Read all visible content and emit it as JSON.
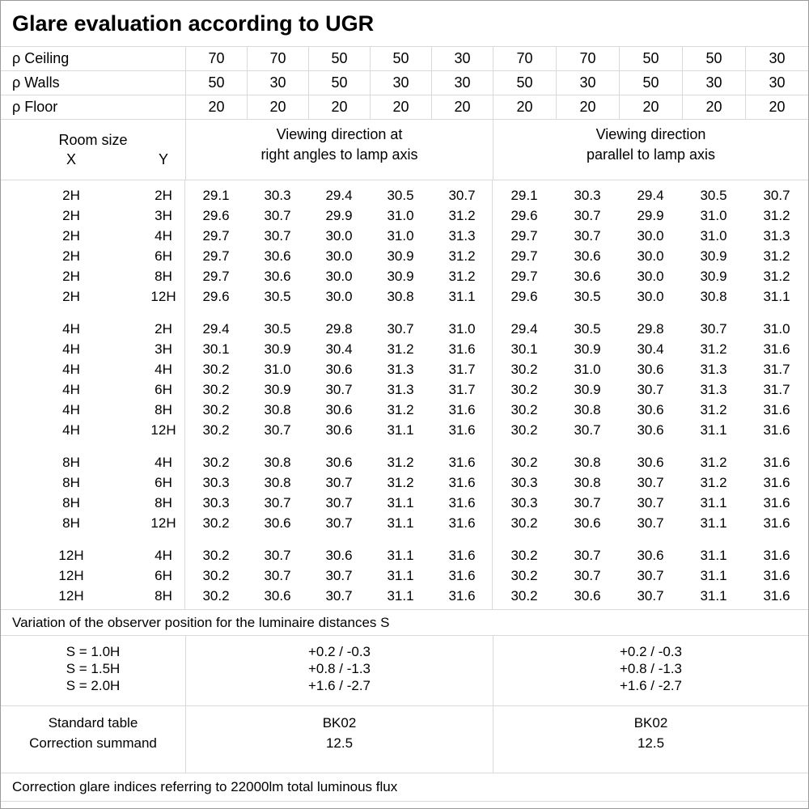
{
  "title": "Glare evaluation according to UGR",
  "header": {
    "rho_rows": [
      {
        "label": "ρ Ceiling",
        "values": [
          "70",
          "70",
          "50",
          "50",
          "30",
          "70",
          "70",
          "50",
          "50",
          "30"
        ]
      },
      {
        "label": "ρ Walls",
        "values": [
          "50",
          "30",
          "50",
          "30",
          "30",
          "50",
          "30",
          "50",
          "30",
          "30"
        ]
      },
      {
        "label": "ρ Floor",
        "values": [
          "20",
          "20",
          "20",
          "20",
          "20",
          "20",
          "20",
          "20",
          "20",
          "20"
        ]
      }
    ],
    "room_size_label": "Room size",
    "x_label": "X",
    "y_label": "Y",
    "group1": {
      "line1": "Viewing direction at",
      "line2": "right angles to lamp axis"
    },
    "group2": {
      "line1": "Viewing direction",
      "line2": "parallel to lamp axis"
    }
  },
  "body": {
    "groups": [
      {
        "rows": [
          {
            "x": "2H",
            "y": "2H",
            "right_angles": [
              "29.1",
              "30.3",
              "29.4",
              "30.5",
              "30.7"
            ],
            "parallel": [
              "29.1",
              "30.3",
              "29.4",
              "30.5",
              "30.7"
            ]
          },
          {
            "x": "2H",
            "y": "3H",
            "right_angles": [
              "29.6",
              "30.7",
              "29.9",
              "31.0",
              "31.2"
            ],
            "parallel": [
              "29.6",
              "30.7",
              "29.9",
              "31.0",
              "31.2"
            ]
          },
          {
            "x": "2H",
            "y": "4H",
            "right_angles": [
              "29.7",
              "30.7",
              "30.0",
              "31.0",
              "31.3"
            ],
            "parallel": [
              "29.7",
              "30.7",
              "30.0",
              "31.0",
              "31.3"
            ]
          },
          {
            "x": "2H",
            "y": "6H",
            "right_angles": [
              "29.7",
              "30.6",
              "30.0",
              "30.9",
              "31.2"
            ],
            "parallel": [
              "29.7",
              "30.6",
              "30.0",
              "30.9",
              "31.2"
            ]
          },
          {
            "x": "2H",
            "y": "8H",
            "right_angles": [
              "29.7",
              "30.6",
              "30.0",
              "30.9",
              "31.2"
            ],
            "parallel": [
              "29.7",
              "30.6",
              "30.0",
              "30.9",
              "31.2"
            ]
          },
          {
            "x": "2H",
            "y": "12H",
            "right_angles": [
              "29.6",
              "30.5",
              "30.0",
              "30.8",
              "31.1"
            ],
            "parallel": [
              "29.6",
              "30.5",
              "30.0",
              "30.8",
              "31.1"
            ]
          }
        ]
      },
      {
        "rows": [
          {
            "x": "4H",
            "y": "2H",
            "right_angles": [
              "29.4",
              "30.5",
              "29.8",
              "30.7",
              "31.0"
            ],
            "parallel": [
              "29.4",
              "30.5",
              "29.8",
              "30.7",
              "31.0"
            ]
          },
          {
            "x": "4H",
            "y": "3H",
            "right_angles": [
              "30.1",
              "30.9",
              "30.4",
              "31.2",
              "31.6"
            ],
            "parallel": [
              "30.1",
              "30.9",
              "30.4",
              "31.2",
              "31.6"
            ]
          },
          {
            "x": "4H",
            "y": "4H",
            "right_angles": [
              "30.2",
              "31.0",
              "30.6",
              "31.3",
              "31.7"
            ],
            "parallel": [
              "30.2",
              "31.0",
              "30.6",
              "31.3",
              "31.7"
            ]
          },
          {
            "x": "4H",
            "y": "6H",
            "right_angles": [
              "30.2",
              "30.9",
              "30.7",
              "31.3",
              "31.7"
            ],
            "parallel": [
              "30.2",
              "30.9",
              "30.7",
              "31.3",
              "31.7"
            ]
          },
          {
            "x": "4H",
            "y": "8H",
            "right_angles": [
              "30.2",
              "30.8",
              "30.6",
              "31.2",
              "31.6"
            ],
            "parallel": [
              "30.2",
              "30.8",
              "30.6",
              "31.2",
              "31.6"
            ]
          },
          {
            "x": "4H",
            "y": "12H",
            "right_angles": [
              "30.2",
              "30.7",
              "30.6",
              "31.1",
              "31.6"
            ],
            "parallel": [
              "30.2",
              "30.7",
              "30.6",
              "31.1",
              "31.6"
            ]
          }
        ]
      },
      {
        "rows": [
          {
            "x": "8H",
            "y": "4H",
            "right_angles": [
              "30.2",
              "30.8",
              "30.6",
              "31.2",
              "31.6"
            ],
            "parallel": [
              "30.2",
              "30.8",
              "30.6",
              "31.2",
              "31.6"
            ]
          },
          {
            "x": "8H",
            "y": "6H",
            "right_angles": [
              "30.3",
              "30.8",
              "30.7",
              "31.2",
              "31.6"
            ],
            "parallel": [
              "30.3",
              "30.8",
              "30.7",
              "31.2",
              "31.6"
            ]
          },
          {
            "x": "8H",
            "y": "8H",
            "right_angles": [
              "30.3",
              "30.7",
              "30.7",
              "31.1",
              "31.6"
            ],
            "parallel": [
              "30.3",
              "30.7",
              "30.7",
              "31.1",
              "31.6"
            ]
          },
          {
            "x": "8H",
            "y": "12H",
            "right_angles": [
              "30.2",
              "30.6",
              "30.7",
              "31.1",
              "31.6"
            ],
            "parallel": [
              "30.2",
              "30.6",
              "30.7",
              "31.1",
              "31.6"
            ]
          }
        ]
      },
      {
        "rows": [
          {
            "x": "12H",
            "y": "4H",
            "right_angles": [
              "30.2",
              "30.7",
              "30.6",
              "31.1",
              "31.6"
            ],
            "parallel": [
              "30.2",
              "30.7",
              "30.6",
              "31.1",
              "31.6"
            ]
          },
          {
            "x": "12H",
            "y": "6H",
            "right_angles": [
              "30.2",
              "30.7",
              "30.7",
              "31.1",
              "31.6"
            ],
            "parallel": [
              "30.2",
              "30.7",
              "30.7",
              "31.1",
              "31.6"
            ]
          },
          {
            "x": "12H",
            "y": "8H",
            "right_angles": [
              "30.2",
              "30.6",
              "30.7",
              "31.1",
              "31.6"
            ],
            "parallel": [
              "30.2",
              "30.6",
              "30.7",
              "31.1",
              "31.6"
            ]
          }
        ]
      }
    ]
  },
  "footer": {
    "variation_note": "Variation of the observer position for the luminaire distances S",
    "s_rows": [
      {
        "label": "S = 1.0H",
        "value": "+0.2 / -0.3"
      },
      {
        "label": "S = 1.5H",
        "value": "+0.8 / -1.3"
      },
      {
        "label": "S = 2.0H",
        "value": "+1.6 / -2.7"
      }
    ],
    "standard_table": {
      "label": "Standard table",
      "value": "BK02"
    },
    "correction_summand": {
      "label": "Correction summand",
      "value": "12.5"
    },
    "flux_note": "Correction glare indices referring to 22000lm total luminous flux"
  }
}
